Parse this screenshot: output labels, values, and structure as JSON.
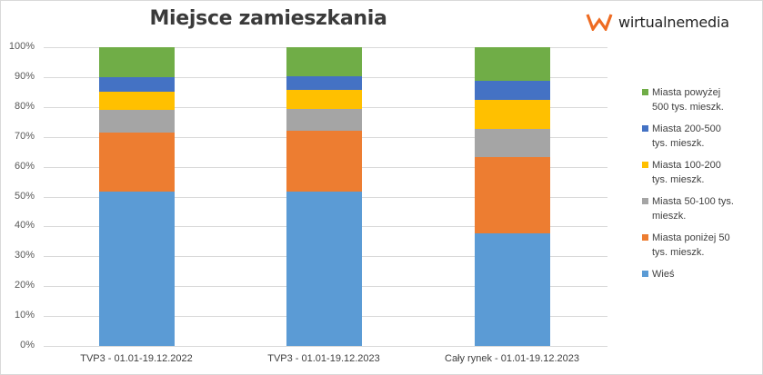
{
  "title": "Miejsce zamieszkania",
  "logo": {
    "text": "wirtualnemedia",
    "color": "#ee6b22"
  },
  "chart_data": {
    "type": "bar",
    "stacked": "percent",
    "title": "Miejsce zamieszkania",
    "xlabel": "",
    "ylabel": "",
    "ylim": [
      0,
      100
    ],
    "yticks": [
      "0%",
      "10%",
      "20%",
      "30%",
      "40%",
      "50%",
      "60%",
      "70%",
      "80%",
      "90%",
      "100%"
    ],
    "grid": true,
    "legend_position": "right",
    "categories": [
      "TVP3 - 01.01-19.12.2022",
      "TVP3 - 01.01-19.12.2023",
      "Cały rynek - 01.01-19.12.2023"
    ],
    "series": [
      {
        "name": "Wieś",
        "color": "#5b9bd5",
        "values": [
          51.7,
          51.7,
          37.7
        ]
      },
      {
        "name": "Miasta poniżej 50 tys. mieszk.",
        "color": "#ed7d31",
        "values": [
          19.7,
          20.3,
          25.5
        ]
      },
      {
        "name": "Miasta 50-100 tys. mieszk.",
        "color": "#a5a5a5",
        "values": [
          7.6,
          7.3,
          9.4
        ]
      },
      {
        "name": "Miasta 100-200 tys. mieszk.",
        "color": "#ffc000",
        "values": [
          6.1,
          6.4,
          9.8
        ]
      },
      {
        "name": "Miasta 200-500 tys. mieszk.",
        "color": "#4472c4",
        "values": [
          4.9,
          4.6,
          6.4
        ]
      },
      {
        "name": "Miasta powyżej 500 tys. mieszk.",
        "color": "#70ad47",
        "values": [
          10.0,
          9.7,
          11.2
        ]
      }
    ]
  },
  "legend": [
    {
      "lines": [
        "Miasta powyżej",
        "500 tys. mieszk."
      ],
      "color": "#70ad47"
    },
    {
      "lines": [
        "Miasta 200-500",
        "tys. mieszk."
      ],
      "color": "#4472c4"
    },
    {
      "lines": [
        "Miasta 100-200",
        "tys. mieszk."
      ],
      "color": "#ffc000"
    },
    {
      "lines": [
        "Miasta 50-100 tys.",
        "mieszk."
      ],
      "color": "#a5a5a5"
    },
    {
      "lines": [
        "Miasta poniżej 50",
        "tys. mieszk."
      ],
      "color": "#ed7d31"
    },
    {
      "lines": [
        "Wieś"
      ],
      "color": "#5b9bd5"
    }
  ]
}
